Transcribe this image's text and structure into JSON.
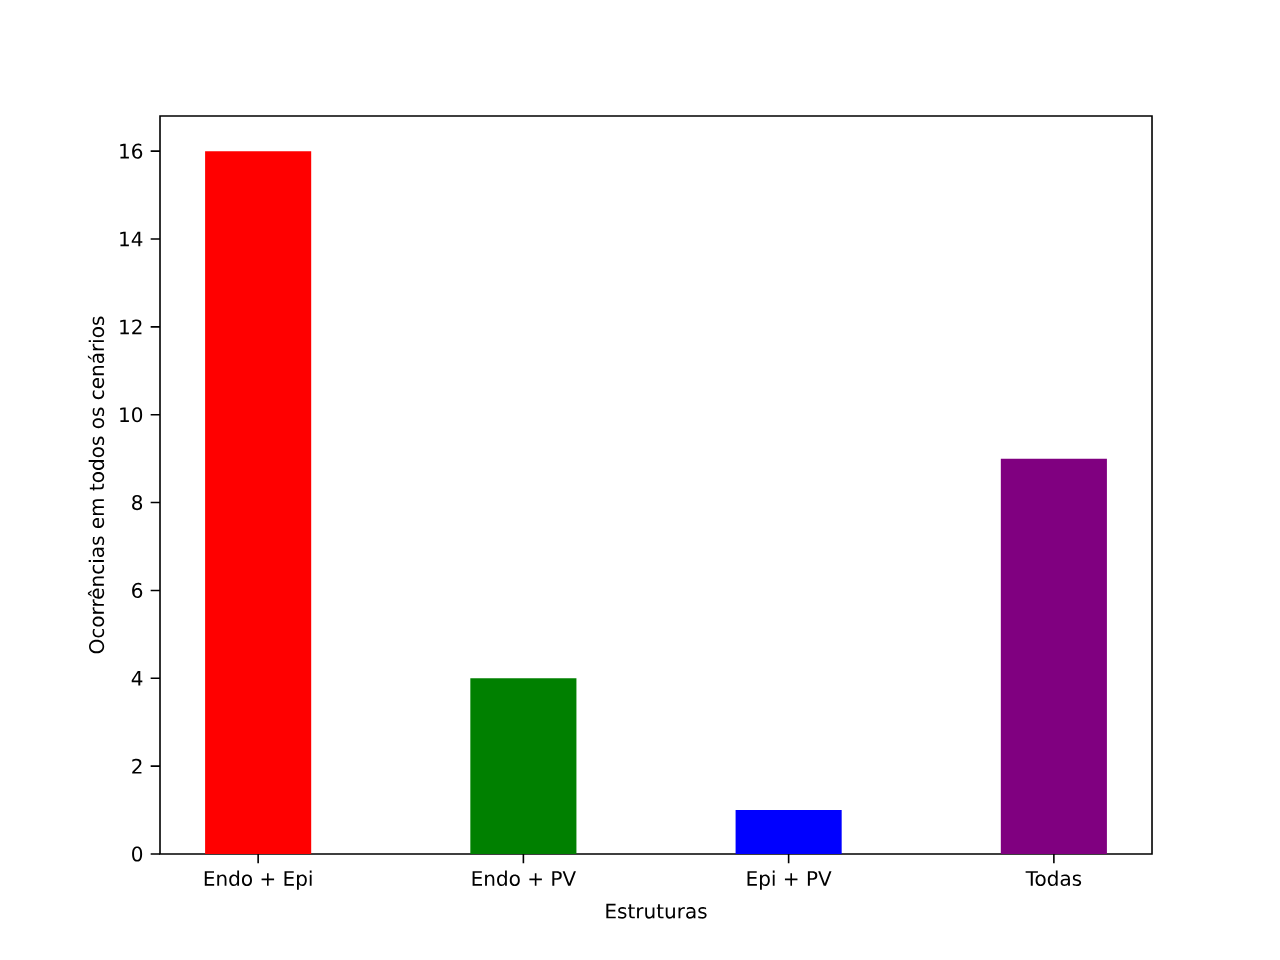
{
  "chart_data": {
    "type": "bar",
    "categories": [
      "Endo + Epi",
      "Endo + PV",
      "Epi + PV",
      "Todas"
    ],
    "values": [
      16,
      4,
      1,
      9
    ],
    "colors": [
      "#ff0000",
      "#008000",
      "#0000ff",
      "#800080"
    ],
    "xlabel": "Estruturas",
    "ylabel": "Ocorrências em todos os cenários",
    "ylim": [
      0,
      16.8
    ],
    "yticks": [
      0,
      2,
      4,
      6,
      8,
      10,
      12,
      14,
      16
    ],
    "grid": false
  }
}
